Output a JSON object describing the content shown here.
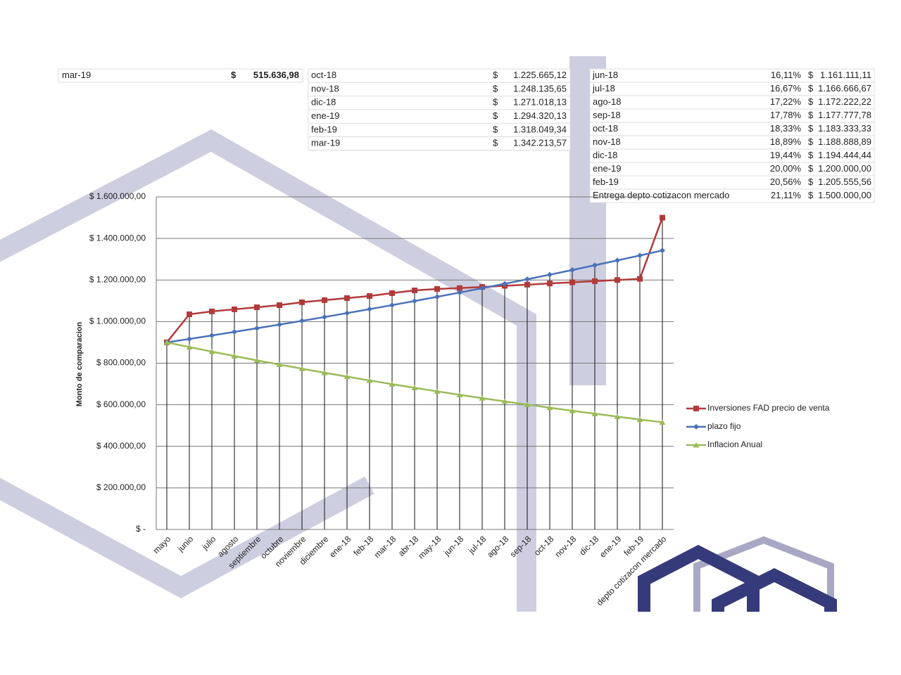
{
  "chart_data": {
    "type": "line",
    "y_label": "Monto de comparacion",
    "categories": [
      "mayo",
      "junio",
      "julio",
      "agosto",
      "septiembre",
      "octubre",
      "noviembre",
      "diciembre",
      "ene-18",
      "feb-18",
      "mar-18",
      "abr-18",
      "may-18",
      "jun-18",
      "jul-18",
      "ago-18",
      "sep-18",
      "oct-18",
      "nov-18",
      "dic-18",
      "ene-19",
      "feb-19",
      "depto cotizacon mercado"
    ],
    "series": [
      {
        "name": "Inversiones FAD precio de venta",
        "color": "#b23a3a",
        "marker": "square",
        "values": [
          900000,
          1035000,
          1049000,
          1059000,
          1069000,
          1079000,
          1093000,
          1103000,
          1113000,
          1123000,
          1137000,
          1150000,
          1157000,
          1161111.11,
          1166666.67,
          1172222.22,
          1177777.78,
          1183333.33,
          1188888.89,
          1194444.44,
          1200000,
          1205555.56,
          1500000
        ]
      },
      {
        "name": "plazo fijo",
        "color": "#4a72b8",
        "marker": "diamond",
        "values": [
          900000,
          916459,
          933263,
          950376,
          967802,
          985548,
          1003620,
          1022023,
          1040763,
          1059846,
          1079279,
          1099069,
          1119222,
          1139745,
          1160644,
          1181925,
          1203597,
          1225665.12,
          1248135.65,
          1271018.13,
          1294320.13,
          1318049.34,
          1342213.57
        ]
      },
      {
        "name": "Inflacion Anual",
        "color": "#9bbb59",
        "marker": "triangle",
        "values": [
          900000,
          877536,
          855633,
          834276,
          813452,
          793148,
          773351,
          754048,
          735227,
          716876,
          698983,
          681536,
          664525,
          647938,
          631765,
          615996,
          600621,
          585630,
          571013,
          556760,
          542863,
          528838.44,
          515636.98
        ]
      }
    ],
    "ylim": [
      0,
      1600000
    ],
    "yticks": [
      {
        "value": 0,
        "label": "$ -"
      },
      {
        "value": 200000,
        "label": "$ 200.000,00"
      },
      {
        "value": 400000,
        "label": "$ 400.000,00"
      },
      {
        "value": 600000,
        "label": "$ 600.000,00"
      },
      {
        "value": 800000,
        "label": "$ 800.000,00"
      },
      {
        "value": 1000000,
        "label": "$ 1.000.000,00"
      },
      {
        "value": 1200000,
        "label": "$ 1.200.000,00"
      },
      {
        "value": 1400000,
        "label": "$ 1.400.000,00"
      },
      {
        "value": 1600000,
        "label": "$ 1.600.000,00"
      }
    ],
    "grid": true,
    "drop_lines": true,
    "legend": "right"
  },
  "tables": [
    {
      "currency": "$",
      "rows": [
        [
          "mar-19",
          "515.636,98"
        ]
      ]
    },
    {
      "currency": "$",
      "rows": [
        [
          "oct-18",
          "1.225.665,12"
        ],
        [
          "nov-18",
          "1.248.135,65"
        ],
        [
          "dic-18",
          "1.271.018,13"
        ],
        [
          "ene-19",
          "1.294.320,13"
        ],
        [
          "feb-19",
          "1.318.049,34"
        ],
        [
          "mar-19",
          "1.342.213,57"
        ]
      ]
    },
    {
      "currency": "$",
      "rows": [
        [
          "jun-18",
          "16,11%",
          "1.161.111,11"
        ],
        [
          "jul-18",
          "16,67%",
          "1.166.666,67"
        ],
        [
          "ago-18",
          "17,22%",
          "1.172.222,22"
        ],
        [
          "sep-18",
          "17,78%",
          "1.177.777,78"
        ],
        [
          "oct-18",
          "18,33%",
          "1.183.333,33"
        ],
        [
          "nov-18",
          "18,89%",
          "1.188.888,89"
        ],
        [
          "dic-18",
          "19,44%",
          "1.194.444,44"
        ],
        [
          "ene-19",
          "20,00%",
          "1.200.000,00"
        ],
        [
          "feb-19",
          "20,56%",
          "1.205.555,56"
        ],
        [
          "Entrega depto cotizacon mercado",
          "21,11%",
          "1.500.000,00"
        ]
      ]
    }
  ]
}
